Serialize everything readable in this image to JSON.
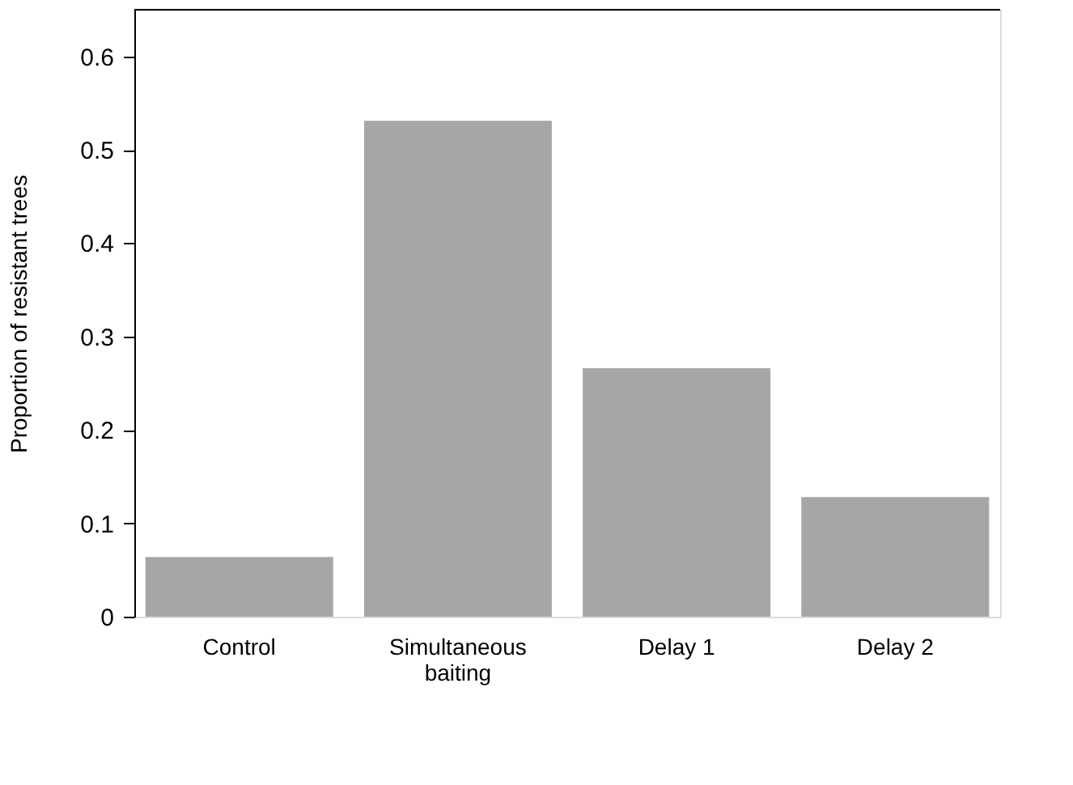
{
  "chart_data": {
    "type": "bar",
    "ylabel": "Proportion of resistant trees",
    "categories": [
      "Control",
      "Simultaneous baiting",
      "Delay 1",
      "Delay 2"
    ],
    "values": [
      0.064,
      0.531,
      0.266,
      0.128
    ],
    "color": "#a6a6a6",
    "ylim": [
      0,
      0.65
    ],
    "yticks": [
      0,
      0.1,
      0.2,
      0.3,
      0.4,
      0.5,
      0.6
    ],
    "grid": false
  }
}
